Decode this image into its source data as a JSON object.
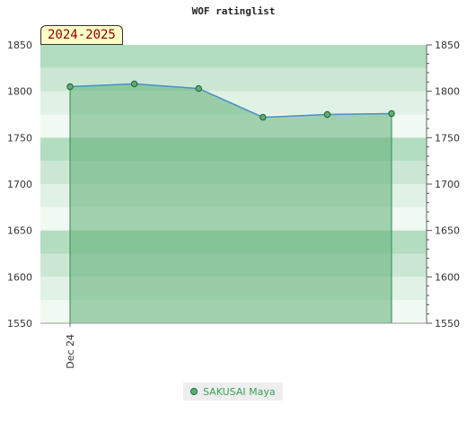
{
  "chart_data": {
    "type": "area",
    "title": "WOF ratinglist",
    "season_label": "2024-2025",
    "x_tick_labels": [
      "Dec 24"
    ],
    "ylim": [
      1550,
      1850
    ],
    "y_ticks": [
      1550,
      1600,
      1650,
      1700,
      1750,
      1800,
      1850
    ],
    "grid": true,
    "legend_position": "bottom-center",
    "series": [
      {
        "name": "SAKUSAI Maya",
        "x": [
          0,
          1,
          2,
          3,
          4,
          5
        ],
        "values": [
          1805,
          1808,
          1803,
          1772,
          1775,
          1776
        ]
      }
    ],
    "colors": {
      "line": "#4a90c8",
      "fill": "#5fae74",
      "marker": "#5fae74",
      "marker_stroke": "#1e5e30",
      "band_dark": "#b3ddc1",
      "band_mid": "#cbe7d4",
      "band_light": "#e0f1e5",
      "band_lightest": "#f1f9f3"
    }
  }
}
